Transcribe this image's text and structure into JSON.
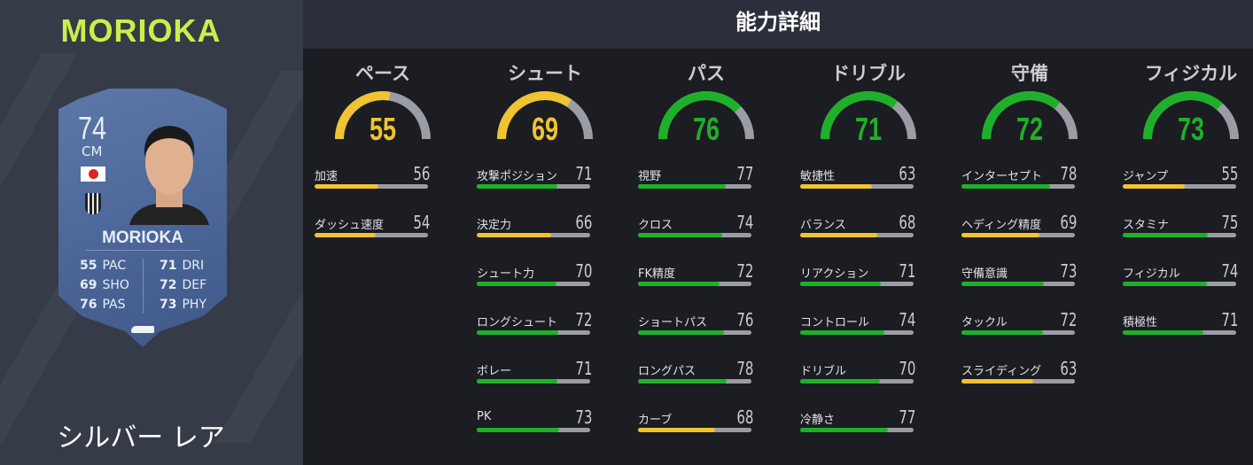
{
  "player": {
    "name": "MORIOKA",
    "rarity": "シルバー レア",
    "overall": "74",
    "position": "CM",
    "card_stats": [
      {
        "v": "55",
        "k": "PAC"
      },
      {
        "v": "69",
        "k": "SHO"
      },
      {
        "v": "76",
        "k": "PAS"
      },
      {
        "v": "71",
        "k": "DRI"
      },
      {
        "v": "72",
        "k": "DEF"
      },
      {
        "v": "73",
        "k": "PHY"
      }
    ]
  },
  "header": {
    "title": "能力詳細"
  },
  "colors": {
    "yellow": "#f0c330",
    "green": "#1fb02a",
    "track": "#9a9da3"
  },
  "categories": [
    {
      "title": "ペース",
      "value": 55,
      "stats": [
        {
          "label": "加速",
          "value": 56
        },
        {
          "label": "ダッシュ速度",
          "value": 54
        }
      ]
    },
    {
      "title": "シュート",
      "value": 69,
      "stats": [
        {
          "label": "攻撃ポジション",
          "value": 71
        },
        {
          "label": "決定力",
          "value": 66
        },
        {
          "label": "シュート力",
          "value": 70
        },
        {
          "label": "ロングシュート",
          "value": 72
        },
        {
          "label": "ボレー",
          "value": 71
        },
        {
          "label": "PK",
          "value": 73
        }
      ]
    },
    {
      "title": "パス",
      "value": 76,
      "stats": [
        {
          "label": "視野",
          "value": 77
        },
        {
          "label": "クロス",
          "value": 74
        },
        {
          "label": "FK精度",
          "value": 72
        },
        {
          "label": "ショートパス",
          "value": 76
        },
        {
          "label": "ロングパス",
          "value": 78
        },
        {
          "label": "カーブ",
          "value": 68
        }
      ]
    },
    {
      "title": "ドリブル",
      "value": 71,
      "stats": [
        {
          "label": "敏捷性",
          "value": 63
        },
        {
          "label": "バランス",
          "value": 68
        },
        {
          "label": "リアクション",
          "value": 71
        },
        {
          "label": "コントロール",
          "value": 74
        },
        {
          "label": "ドリブル",
          "value": 70
        },
        {
          "label": "冷静さ",
          "value": 77
        }
      ]
    },
    {
      "title": "守備",
      "value": 72,
      "stats": [
        {
          "label": "インターセプト",
          "value": 78
        },
        {
          "label": "ヘディング精度",
          "value": 69
        },
        {
          "label": "守備意識",
          "value": 73
        },
        {
          "label": "タックル",
          "value": 72
        },
        {
          "label": "スライディング",
          "value": 63
        }
      ]
    },
    {
      "title": "フィジカル",
      "value": 73,
      "stats": [
        {
          "label": "ジャンプ",
          "value": 55
        },
        {
          "label": "スタミナ",
          "value": 75
        },
        {
          "label": "フィジカル",
          "value": 74
        },
        {
          "label": "積極性",
          "value": 71
        }
      ]
    }
  ]
}
